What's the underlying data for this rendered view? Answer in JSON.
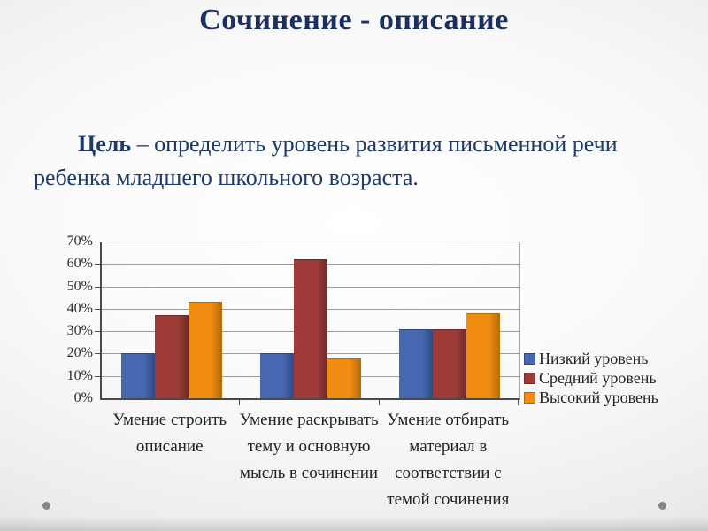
{
  "slide": {
    "title": "Сочинение - описание",
    "title_color": "#1b2f63",
    "paragraph": {
      "lead": "Цель",
      "rest": " – определить уровень развития письменной речи ребенка младшего школьного возраста."
    }
  },
  "chart_data": {
    "type": "bar",
    "title": "",
    "xlabel": "",
    "ylabel": "",
    "ylim": [
      0,
      70
    ],
    "yticks": [
      "0%",
      "10%",
      "20%",
      "30%",
      "40%",
      "50%",
      "60%",
      "70%"
    ],
    "grid": true,
    "legend_position": "right",
    "categories": [
      "Умение строить описание",
      "Умение раскрывать тему и основную мысль в сочинении",
      "Умение отбирать материал в соответствии с темой сочинения"
    ],
    "series": [
      {
        "name": "Низкий уровень",
        "color": "#4668b0",
        "border": "#2f4a83",
        "values": [
          20,
          20,
          31
        ]
      },
      {
        "name": "Средний уровень",
        "color": "#9e3b38",
        "border": "#6e2a28",
        "values": [
          37,
          62,
          31
        ]
      },
      {
        "name": "Высокий уровень",
        "color": "#f08c12",
        "border": "#b56a08",
        "values": [
          43,
          18,
          38
        ]
      }
    ]
  },
  "decorations": {
    "dot_color": "#878787"
  }
}
